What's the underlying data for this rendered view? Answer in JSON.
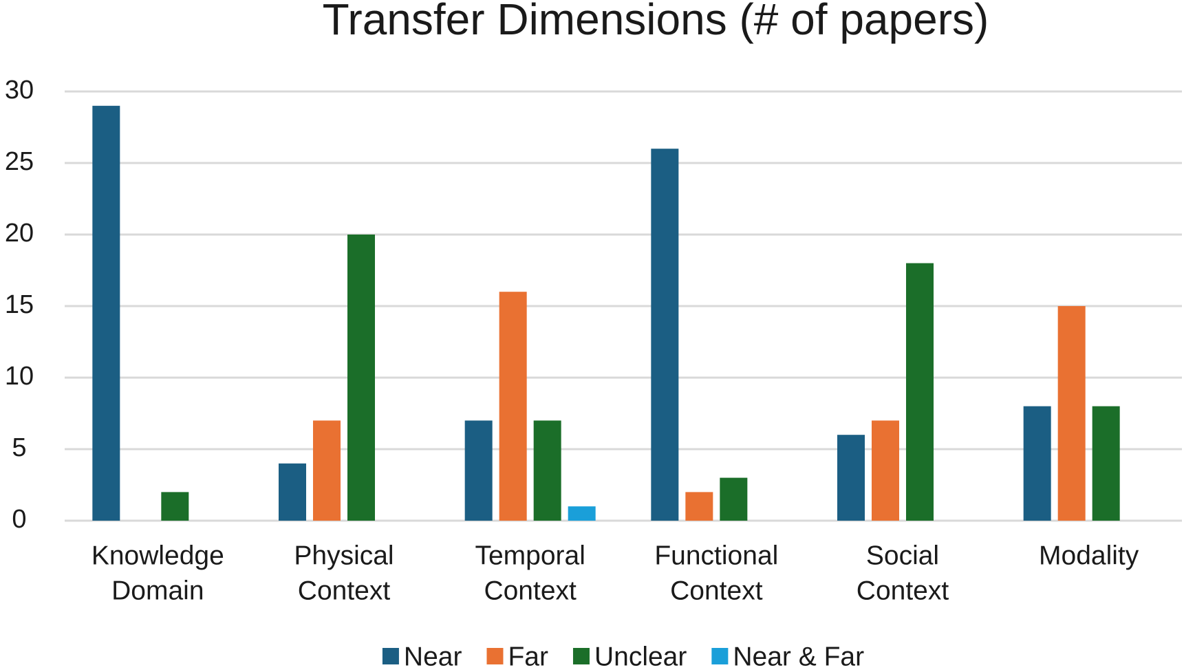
{
  "chart_data": {
    "type": "bar",
    "title": "Transfer Dimensions (# of papers)",
    "categories": [
      [
        "Knowledge",
        "Domain"
      ],
      [
        "Physical",
        "Context"
      ],
      [
        "Temporal",
        "Context"
      ],
      [
        "Functional",
        "Context"
      ],
      [
        "Social",
        "Context"
      ],
      [
        "Modality"
      ]
    ],
    "series": [
      {
        "name": "Near",
        "color": "#1b5e83",
        "values": [
          29,
          4,
          7,
          26,
          6,
          8
        ]
      },
      {
        "name": "Far",
        "color": "#e97132",
        "values": [
          0,
          7,
          16,
          2,
          7,
          15
        ]
      },
      {
        "name": "Unclear",
        "color": "#1b6e29",
        "values": [
          2,
          20,
          7,
          3,
          18,
          8
        ]
      },
      {
        "name": "Near & Far",
        "color": "#1a9fd9",
        "values": [
          0,
          0,
          1,
          0,
          0,
          0
        ]
      }
    ],
    "ylim": [
      0,
      30
    ],
    "yticks": [
      0,
      5,
      10,
      15,
      20,
      25,
      30
    ],
    "grid": true,
    "legend": "bottom"
  }
}
